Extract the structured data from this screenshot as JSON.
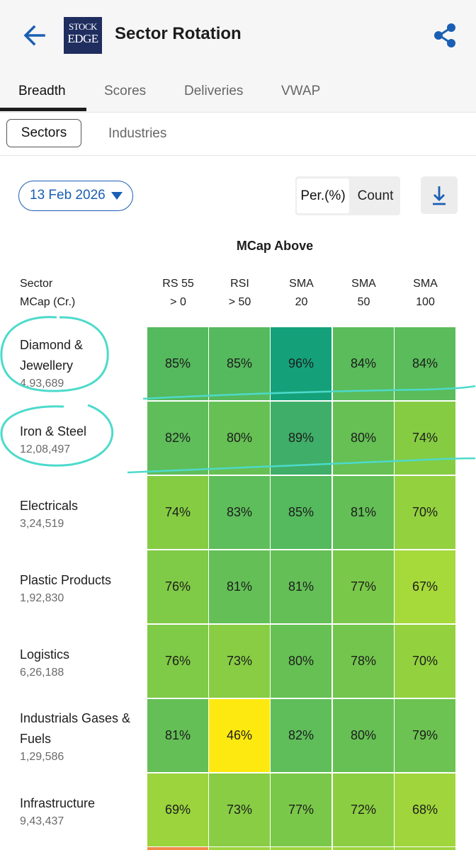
{
  "header": {
    "title": "Sector Rotation",
    "logo_line1": "STOCK",
    "logo_line2": "EDGE",
    "back_icon": "arrow-left-icon",
    "share_icon": "share-icon",
    "accent_color": "#1a5fb4"
  },
  "tabs": [
    "Breadth",
    "Scores",
    "Deliveries",
    "VWAP"
  ],
  "active_tab": "Breadth",
  "subtabs": {
    "selected": "Sectors",
    "other": "Industries"
  },
  "controls": {
    "date": "13 Feb 2026",
    "toggle_on": "Per.(%)",
    "toggle_off": "Count",
    "download_icon": "download-icon"
  },
  "table": {
    "title": "MCap Above",
    "row_header_line1": "Sector",
    "row_header_line2": "MCap (Cr.)",
    "columns": [
      {
        "line1": "RS 55",
        "line2": "> 0"
      },
      {
        "line1": "RSI",
        "line2": "> 50"
      },
      {
        "line1": "SMA",
        "line2": "20"
      },
      {
        "line1": "SMA",
        "line2": "50"
      },
      {
        "line1": "SMA",
        "line2": "100"
      }
    ],
    "rows": [
      {
        "name_lines": [
          "Diamond &",
          "Jewellery"
        ],
        "mcap": "4,93,689",
        "cells": [
          "85%",
          "85%",
          "96%",
          "84%",
          "84%"
        ]
      },
      {
        "name_lines": [
          "Iron & Steel"
        ],
        "mcap": "12,08,497",
        "cells": [
          "82%",
          "80%",
          "89%",
          "80%",
          "74%"
        ]
      },
      {
        "name_lines": [
          "Electricals"
        ],
        "mcap": "3,24,519",
        "cells": [
          "74%",
          "83%",
          "85%",
          "81%",
          "70%"
        ]
      },
      {
        "name_lines": [
          "Plastic Products"
        ],
        "mcap": "1,92,830",
        "cells": [
          "76%",
          "81%",
          "81%",
          "77%",
          "67%"
        ]
      },
      {
        "name_lines": [
          "Logistics"
        ],
        "mcap": "6,26,188",
        "cells": [
          "76%",
          "73%",
          "80%",
          "78%",
          "70%"
        ]
      },
      {
        "name_lines": [
          "Industrials Gases &",
          "Fuels"
        ],
        "mcap": "1,29,586",
        "cells": [
          "81%",
          "46%",
          "82%",
          "80%",
          "79%"
        ]
      },
      {
        "name_lines": [
          "Infrastructure"
        ],
        "mcap": "9,43,437",
        "cells": [
          "69%",
          "73%",
          "77%",
          "72%",
          "68%"
        ]
      }
    ],
    "cell_colors": [
      [
        "#55b95d",
        "#55b95d",
        "#14a17a",
        "#5abc5b",
        "#5abc5b"
      ],
      [
        "#5fbe5a",
        "#66c054",
        "#3fae68",
        "#66c054",
        "#85cc43"
      ],
      [
        "#85cc43",
        "#5ebe5b",
        "#55b95d",
        "#63bf56",
        "#93d13f"
      ],
      [
        "#7fca46",
        "#63bf56",
        "#63bf56",
        "#7ac849",
        "#a6d93a"
      ],
      [
        "#7fca46",
        "#88cd44",
        "#66c054",
        "#73c54d",
        "#93d13f"
      ],
      [
        "#63bf56",
        "#fde910",
        "#5fbe5a",
        "#66c054",
        "#6cc351"
      ],
      [
        "#9bd43d",
        "#88cd44",
        "#7ac849",
        "#8bce42",
        "#a0d63b"
      ]
    ]
  }
}
